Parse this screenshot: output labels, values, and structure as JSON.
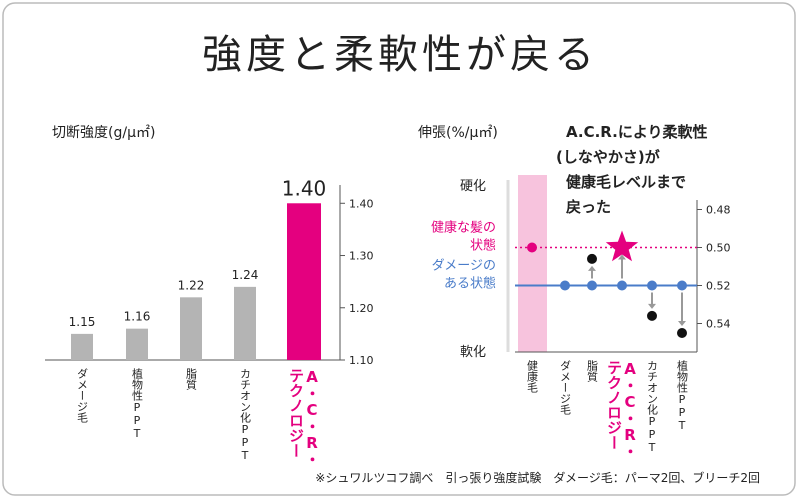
{
  "title": "強度と柔軟性が戻る",
  "footnote": "※シュワルツコフ調べ　引っ張り強度試験　ダメージ毛：パーマ2回、ブリーチ2回",
  "chart_data": [
    {
      "type": "bar",
      "axis_title": "切断強度(g/μ㎡)",
      "categories": [
        [
          "ダメージ毛"
        ],
        [
          "植物性PPT"
        ],
        [
          "脂質"
        ],
        [
          "カチオン化PPT"
        ],
        [
          "A・C・R・",
          "テクノロジー"
        ]
      ],
      "values": [
        1.15,
        1.16,
        1.22,
        1.24,
        1.4
      ],
      "value_labels": [
        "1.15",
        "1.16",
        "1.22",
        "1.24",
        "1.40"
      ],
      "colors": [
        "#b4b4b4",
        "#b4b4b4",
        "#b4b4b4",
        "#b4b4b4",
        "#e4007f"
      ],
      "ylim": [
        1.1,
        1.435
      ],
      "yticks": [
        {
          "value": 1.1,
          "label": "1.10"
        },
        {
          "value": 1.2,
          "label": "1.20"
        },
        {
          "value": 1.3,
          "label": "1.30"
        },
        {
          "value": 1.4,
          "label": "1.40"
        }
      ]
    },
    {
      "type": "dot",
      "axis_title": "伸張(%/μ㎡)",
      "categories": [
        [
          "健康毛"
        ],
        [
          "ダメージ毛"
        ],
        [
          "脂質"
        ],
        [
          "A・C・R・",
          "テクノロジー"
        ],
        [
          "カチオン化PPT"
        ],
        [
          "植物性PPT"
        ]
      ],
      "series": [
        {
          "color": "#4a7cc9",
          "values": [
            null,
            0.52,
            0.52,
            0.52,
            0.52,
            0.52
          ]
        },
        {
          "colors": [
            "#e4007f",
            null,
            "#111111",
            "#e4007f",
            "#111111",
            "#111111"
          ],
          "star_index": 3,
          "values": [
            0.5,
            null,
            0.506,
            0.5,
            0.536,
            0.545
          ]
        }
      ],
      "reference_lines": [
        {
          "label": [
            "健康な髪の",
            "状態"
          ],
          "value": 0.5,
          "color": "#e4007f",
          "dashed": true
        },
        {
          "label": [
            "ダメージの",
            "ある状態"
          ],
          "value": 0.52,
          "color": "#4a7cc9",
          "dashed": false
        }
      ],
      "top_label": "硬化",
      "bottom_label": "軟化",
      "annotation": [
        "A.C.R.により柔軟性",
        "(しなやかさ)が",
        "健康毛レベルまで",
        "戻った"
      ],
      "ylim": [
        0.475,
        0.555
      ],
      "y_reversed": true,
      "yticks": [
        0.48,
        {
          "value": 0.5,
          "label": "0.50"
        },
        0.52,
        0.54
      ]
    }
  ]
}
